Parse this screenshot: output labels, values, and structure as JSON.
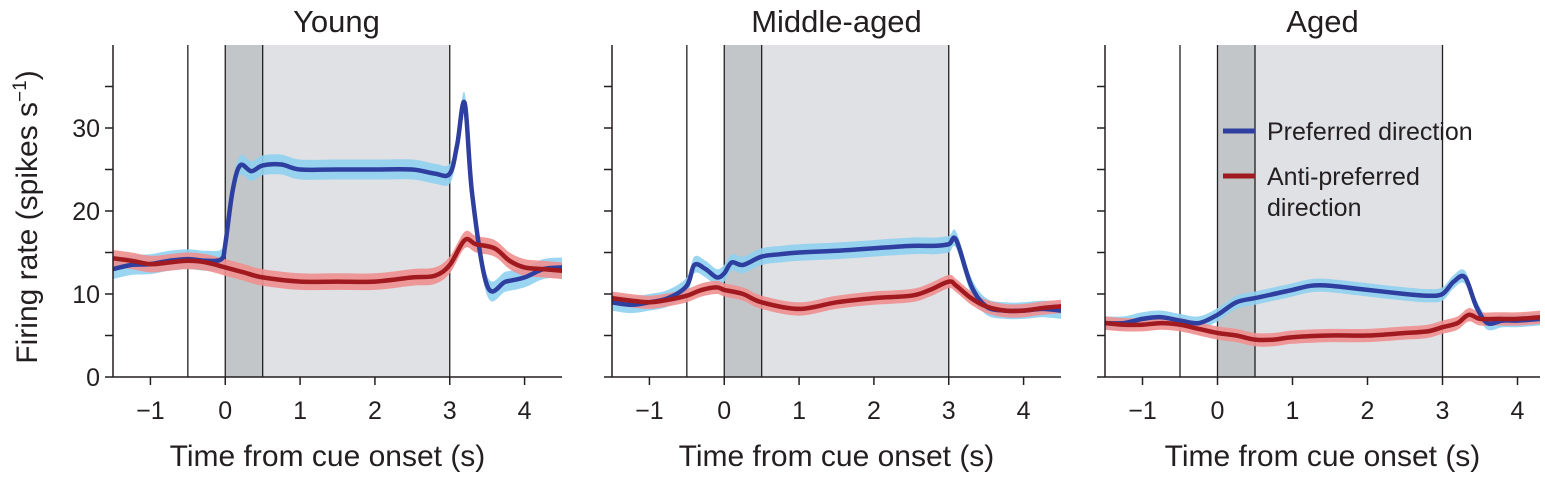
{
  "chart_data": [
    {
      "type": "line",
      "title": "Young",
      "xlabel": "Time from cue onset (s)",
      "ylabel": "Firing rate (spikes s",
      "ylabel_superscript": "−1",
      "ylabel_close": ")",
      "xlim": [
        -1.5,
        4.5
      ],
      "ylim": [
        0,
        40
      ],
      "xticks": [
        -1,
        0,
        1,
        2,
        3,
        4
      ],
      "xtick_labels": [
        "−1",
        "0",
        "1",
        "2",
        "3",
        "4"
      ],
      "yticks": [
        0,
        10,
        20,
        30
      ],
      "ytick_labels": [
        "0",
        "10",
        "20",
        "30"
      ],
      "minor_yticks": [
        5,
        15,
        25,
        35
      ],
      "vlines": [
        -0.5,
        0,
        0.5,
        3
      ],
      "shaded": [
        {
          "from": 0,
          "to": 0.5,
          "color": "#c3c6c9"
        },
        {
          "from": 0.5,
          "to": 3,
          "color": "#dfe1e4"
        }
      ],
      "series": [
        {
          "name": "Preferred direction",
          "color": "#2e3f9f",
          "band_color": "#8fd0ef",
          "x": [
            -1.5,
            -1.25,
            -1.0,
            -0.75,
            -0.5,
            -0.25,
            -0.05,
            0.0,
            0.1,
            0.2,
            0.35,
            0.5,
            0.75,
            1.0,
            1.5,
            2.0,
            2.5,
            2.8,
            3.0,
            3.1,
            3.2,
            3.3,
            3.5,
            3.75,
            4.0,
            4.25,
            4.5
          ],
          "values": [
            13.0,
            13.5,
            13.6,
            14.0,
            14.2,
            14.0,
            14.2,
            16.0,
            22.5,
            25.5,
            24.8,
            25.5,
            25.6,
            25.0,
            25.0,
            25.0,
            25.0,
            24.5,
            24.5,
            28.0,
            33.0,
            22.0,
            11.0,
            11.5,
            12.0,
            13.0,
            13.2
          ],
          "band_halfwidth": 1.2
        },
        {
          "name": "Anti-preferred direction",
          "color": "#a11a20",
          "band_color": "#ef8f8f",
          "x": [
            -1.5,
            -1.25,
            -1.0,
            -0.75,
            -0.5,
            -0.25,
            0.0,
            0.25,
            0.5,
            1.0,
            1.5,
            2.0,
            2.5,
            2.8,
            3.0,
            3.2,
            3.35,
            3.6,
            3.8,
            4.0,
            4.25,
            4.5
          ],
          "values": [
            14.3,
            14.0,
            13.6,
            13.8,
            14.0,
            13.8,
            13.2,
            12.6,
            12.0,
            11.5,
            11.5,
            11.5,
            12.0,
            12.2,
            13.5,
            16.5,
            16.0,
            15.5,
            14.0,
            13.2,
            13.0,
            12.8
          ],
          "band_halfwidth": 1.0
        }
      ]
    },
    {
      "type": "line",
      "title": "Middle-aged",
      "xlabel": "Time from cue onset (s)",
      "xlim": [
        -1.5,
        4.5
      ],
      "ylim": [
        0,
        40
      ],
      "xticks": [
        -1,
        0,
        1,
        2,
        3,
        4
      ],
      "xtick_labels": [
        "−1",
        "0",
        "1",
        "2",
        "3",
        "4"
      ],
      "yticks": [
        0,
        10,
        20,
        30
      ],
      "minor_yticks": [
        5,
        15,
        25,
        35
      ],
      "vlines": [
        -0.5,
        0,
        0.5,
        3
      ],
      "shaded": [
        {
          "from": 0,
          "to": 0.5,
          "color": "#c3c6c9"
        },
        {
          "from": 0.5,
          "to": 3,
          "color": "#dfe1e4"
        }
      ],
      "series": [
        {
          "name": "Preferred direction",
          "color": "#2e3f9f",
          "band_color": "#8fd0ef",
          "x": [
            -1.5,
            -1.25,
            -1.0,
            -0.75,
            -0.5,
            -0.4,
            -0.25,
            -0.1,
            0.0,
            0.1,
            0.25,
            0.5,
            0.75,
            1.0,
            1.5,
            2.0,
            2.5,
            2.8,
            3.0,
            3.1,
            3.3,
            3.5,
            3.75,
            4.0,
            4.25,
            4.5
          ],
          "values": [
            9.0,
            8.7,
            9.0,
            9.5,
            11.0,
            13.5,
            13.0,
            12.0,
            12.5,
            13.8,
            13.5,
            14.5,
            14.8,
            15.0,
            15.2,
            15.5,
            15.8,
            15.8,
            16.0,
            16.5,
            11.0,
            8.5,
            8.0,
            8.0,
            8.2,
            8.0
          ],
          "band_halfwidth": 1.0
        },
        {
          "name": "Anti-preferred direction",
          "color": "#a11a20",
          "band_color": "#ef8f8f",
          "x": [
            -1.5,
            -1.25,
            -1.0,
            -0.75,
            -0.5,
            -0.3,
            -0.1,
            0.0,
            0.25,
            0.5,
            1.0,
            1.5,
            2.0,
            2.5,
            2.75,
            3.0,
            3.1,
            3.3,
            3.5,
            3.75,
            4.0,
            4.25,
            4.5
          ],
          "values": [
            9.5,
            9.2,
            9.0,
            9.3,
            9.8,
            10.5,
            10.8,
            10.5,
            10.0,
            9.0,
            8.2,
            9.0,
            9.5,
            9.8,
            10.5,
            11.5,
            11.0,
            9.5,
            8.5,
            8.0,
            8.0,
            8.3,
            8.5
          ],
          "band_halfwidth": 0.8
        }
      ]
    },
    {
      "type": "line",
      "title": "Aged",
      "xlabel": "Time from cue onset (s)",
      "xlim": [
        -1.5,
        4.3
      ],
      "ylim": [
        0,
        40
      ],
      "xticks": [
        -1,
        0,
        1,
        2,
        3,
        4
      ],
      "xtick_labels": [
        "−1",
        "0",
        "1",
        "2",
        "3",
        "4"
      ],
      "yticks": [
        0,
        10,
        20,
        30
      ],
      "minor_yticks": [
        5,
        15,
        25,
        35
      ],
      "vlines": [
        -0.5,
        0,
        0.5,
        3
      ],
      "shaded": [
        {
          "from": 0,
          "to": 0.5,
          "color": "#c3c6c9"
        },
        {
          "from": 0.5,
          "to": 3,
          "color": "#dfe1e4"
        }
      ],
      "legend": {
        "placement": "right",
        "entries": [
          {
            "lines": [
              "Preferred direction"
            ],
            "color": "#2e3f9f"
          },
          {
            "lines": [
              "Anti-preferred",
              "direction"
            ],
            "color": "#a11a20"
          }
        ]
      },
      "series": [
        {
          "name": "Preferred direction",
          "color": "#2e3f9f",
          "band_color": "#8fd0ef",
          "x": [
            -1.5,
            -1.25,
            -1.0,
            -0.75,
            -0.5,
            -0.25,
            0.0,
            0.25,
            0.5,
            0.75,
            1.0,
            1.25,
            1.5,
            2.0,
            2.5,
            2.8,
            3.0,
            3.15,
            3.3,
            3.45,
            3.6,
            3.8,
            4.0,
            4.3
          ],
          "values": [
            6.5,
            6.5,
            7.0,
            7.2,
            6.8,
            6.5,
            7.5,
            9.0,
            9.5,
            10.0,
            10.5,
            11.0,
            11.0,
            10.5,
            10.0,
            9.8,
            10.0,
            11.5,
            12.0,
            8.5,
            6.5,
            6.8,
            6.8,
            7.0
          ],
          "band_halfwidth": 0.8
        },
        {
          "name": "Anti-preferred direction",
          "color": "#a11a20",
          "band_color": "#ef8f8f",
          "x": [
            -1.5,
            -1.25,
            -1.0,
            -0.75,
            -0.5,
            -0.25,
            0.0,
            0.25,
            0.5,
            0.75,
            1.0,
            1.5,
            2.0,
            2.5,
            2.8,
            3.0,
            3.2,
            3.35,
            3.5,
            3.75,
            4.0,
            4.3
          ],
          "values": [
            6.5,
            6.3,
            6.3,
            6.5,
            6.3,
            5.8,
            5.3,
            5.0,
            4.5,
            4.5,
            4.8,
            5.0,
            5.0,
            5.3,
            5.5,
            6.0,
            6.5,
            7.5,
            7.0,
            7.0,
            7.0,
            7.2
          ],
          "band_halfwidth": 0.8
        }
      ]
    }
  ]
}
